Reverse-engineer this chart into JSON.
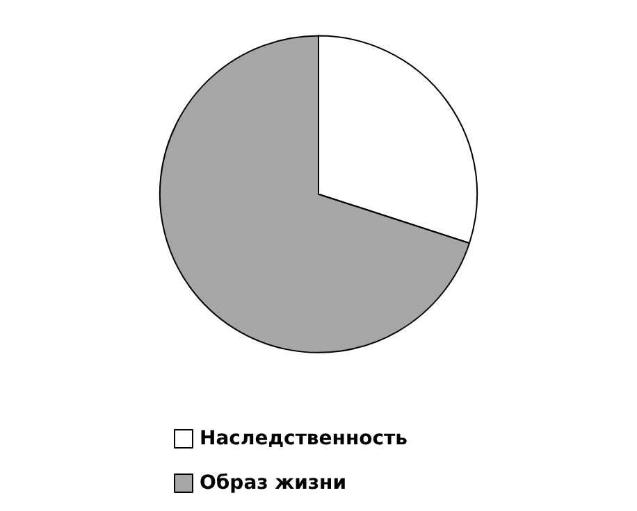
{
  "chart_data": {
    "type": "pie",
    "categories": [
      "Наследственность",
      "Образ жизни"
    ],
    "values": [
      30,
      70
    ],
    "colors": [
      "#ffffff",
      "#a6a6a6"
    ],
    "legend": "bottom"
  }
}
